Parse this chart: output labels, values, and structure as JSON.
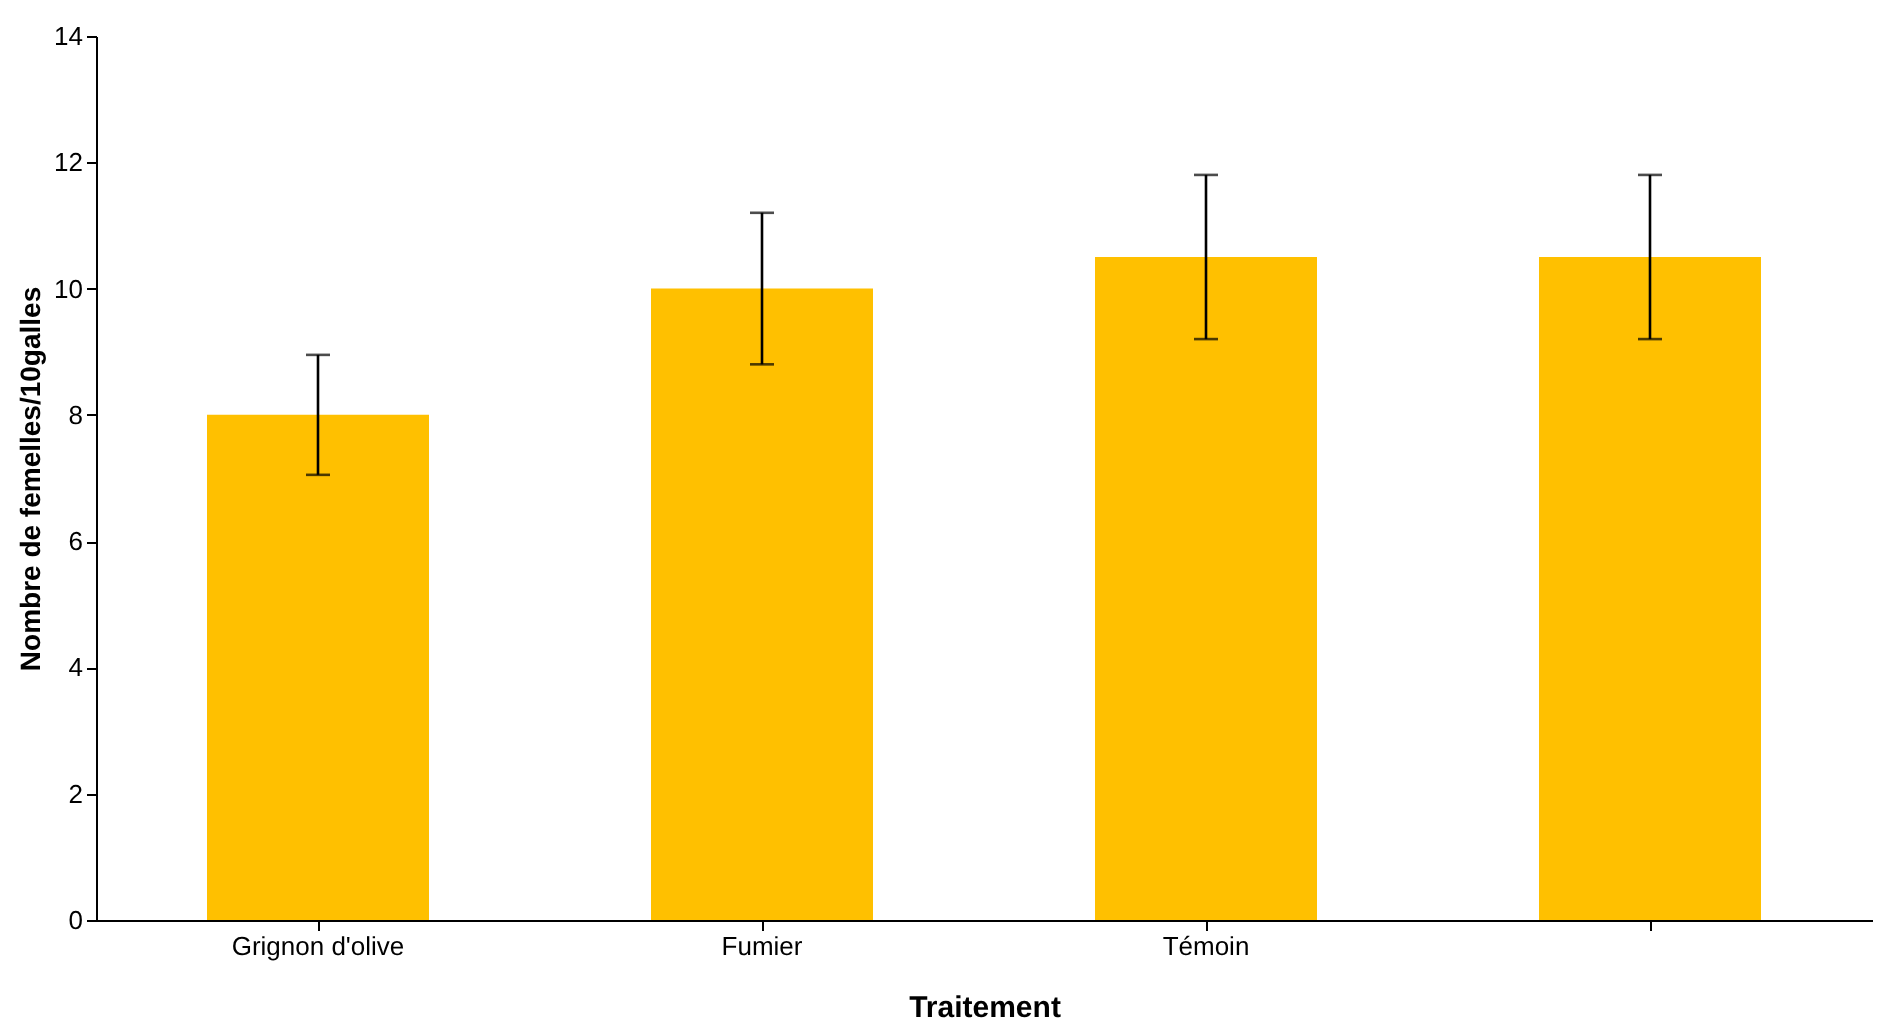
{
  "chart_data": {
    "type": "bar",
    "xlabel": "Traitement",
    "ylabel": "Nombre de femelles/10galles",
    "categories": [
      "Grignon d'olive",
      "Fumier",
      "Témoin",
      null
    ],
    "values": [
      8.0,
      10.0,
      10.5,
      10.5
    ],
    "errors": [
      0.95,
      1.2,
      1.3,
      1.3
    ],
    "color": "#ffc000",
    "ylim": [
      0,
      14
    ],
    "yticks": [
      0,
      2,
      4,
      6,
      8,
      10,
      12,
      14
    ],
    "grid": false
  }
}
